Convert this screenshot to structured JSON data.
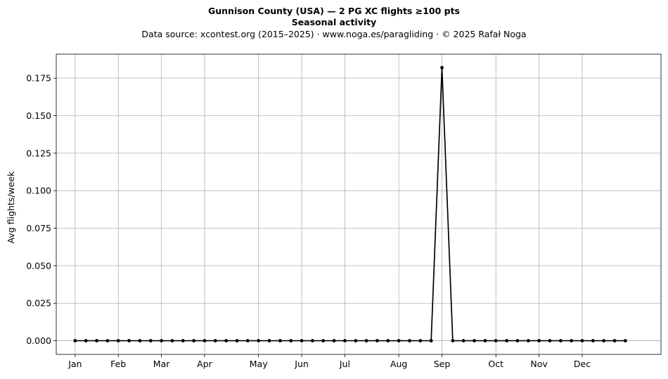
{
  "chart_data": {
    "type": "line",
    "title": "Gunnison County (USA)  —  2 PG XC flights ≥100 pts",
    "subtitle": "Seasonal activity",
    "source_line": "Data source: xcontest.org (2015–2025)  ·  www.noga.es/paragliding  ·  © 2025 Rafał Noga",
    "xlabel": "",
    "ylabel": "Avg flights/week",
    "grid": true,
    "line_color": "#000000",
    "grid_color": "#b0b0b0",
    "x_unit": "week of year",
    "xlim": [
      -1.75,
      54.3
    ],
    "ylim": [
      -0.0091,
      0.191
    ],
    "x_ticks": [
      {
        "label": "Jan",
        "x": 0
      },
      {
        "label": "Feb",
        "x": 4
      },
      {
        "label": "Mar",
        "x": 8
      },
      {
        "label": "Apr",
        "x": 12
      },
      {
        "label": "May",
        "x": 17
      },
      {
        "label": "Jun",
        "x": 21
      },
      {
        "label": "Jul",
        "x": 25
      },
      {
        "label": "Aug",
        "x": 30
      },
      {
        "label": "Sep",
        "x": 34
      },
      {
        "label": "Oct",
        "x": 39
      },
      {
        "label": "Nov",
        "x": 43
      },
      {
        "label": "Dec",
        "x": 47
      }
    ],
    "y_ticks": [
      "0.000",
      "0.025",
      "0.050",
      "0.075",
      "0.100",
      "0.125",
      "0.150",
      "0.175"
    ],
    "x": [
      0,
      1,
      2,
      3,
      4,
      5,
      6,
      7,
      8,
      9,
      10,
      11,
      12,
      13,
      14,
      15,
      16,
      17,
      18,
      19,
      20,
      21,
      22,
      23,
      24,
      25,
      26,
      27,
      28,
      29,
      30,
      31,
      32,
      33,
      34,
      35,
      36,
      37,
      38,
      39,
      40,
      41,
      42,
      43,
      44,
      45,
      46,
      47,
      48,
      49,
      50,
      51
    ],
    "values": [
      0,
      0,
      0,
      0,
      0,
      0,
      0,
      0,
      0,
      0,
      0,
      0,
      0,
      0,
      0,
      0,
      0,
      0,
      0,
      0,
      0,
      0,
      0,
      0,
      0,
      0,
      0,
      0,
      0,
      0,
      0,
      0,
      0,
      0,
      0.182,
      0,
      0,
      0,
      0,
      0,
      0,
      0,
      0,
      0,
      0,
      0,
      0,
      0,
      0,
      0,
      0,
      0
    ]
  }
}
